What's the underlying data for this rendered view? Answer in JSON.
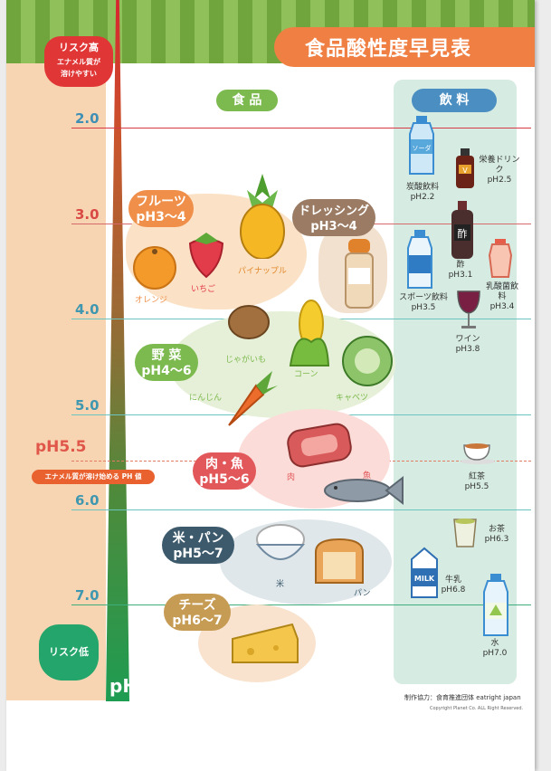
{
  "title": "食品酸性度早見表",
  "risk_high": {
    "label": "リスク高",
    "sub1": "エナメル質が",
    "sub2": "溶けやすい"
  },
  "risk_low": {
    "label": "リスク低"
  },
  "ph_axis_label": "pH",
  "ph_marks": [
    "2.0",
    "3.0",
    "4.0",
    "5.0",
    "6.0",
    "7.0"
  ],
  "critical": {
    "value": "pH5.5",
    "note": "エナメル質が溶け始める PH 値"
  },
  "sections": {
    "food": "食 品",
    "drinks": "飲 料"
  },
  "food_groups": [
    {
      "name": "フルーツ",
      "range": "pH3〜4",
      "color": "#ef8f4a"
    },
    {
      "name": "ドレッシング",
      "range": "pH3〜4",
      "color": "#9b7b63"
    },
    {
      "name": "野 菜",
      "range": "pH4〜6",
      "color": "#7cb94e"
    },
    {
      "name": "肉・魚",
      "range": "pH5〜6",
      "color": "#e2575a"
    },
    {
      "name": "米・パン",
      "range": "pH5〜7",
      "color": "#3c5a6c"
    },
    {
      "name": "チーズ",
      "range": "pH6〜7",
      "color": "#c69b53"
    }
  ],
  "food_items": {
    "orange": "オレンジ",
    "strawberry": "いちご",
    "pineapple": "パイナップル",
    "potato": "じゃがいも",
    "corn": "コーン",
    "carrot": "にんじん",
    "cabbage": "キャベツ",
    "meat": "肉",
    "fish": "魚",
    "rice": "米",
    "bread": "パン"
  },
  "drinks": [
    {
      "name": "炭酸飲料",
      "ph": "pH2.2"
    },
    {
      "name": "栄養ドリンク",
      "ph": "pH2.5"
    },
    {
      "name": "酢",
      "ph": "pH3.1"
    },
    {
      "name": "スポーツ飲料",
      "ph": "pH3.5"
    },
    {
      "name": "乳酸菌飲料",
      "ph": "pH3.4"
    },
    {
      "name": "ワイン",
      "ph": "pH3.8"
    },
    {
      "name": "紅茶",
      "ph": "pH5.5"
    },
    {
      "name": "お茶",
      "ph": "pH6.3"
    },
    {
      "name": "牛乳",
      "ph": "pH6.8"
    },
    {
      "name": "水",
      "ph": "pH7.0"
    }
  ],
  "bottle_text": {
    "soda": "ソーダ",
    "vinegar": "酢",
    "milk": "MILK",
    "nutri": "V"
  },
  "credit": "制作協力：食育推進団体 eatright japan",
  "copyright": "Copyright Planet Co. ALL Right Reserved."
}
